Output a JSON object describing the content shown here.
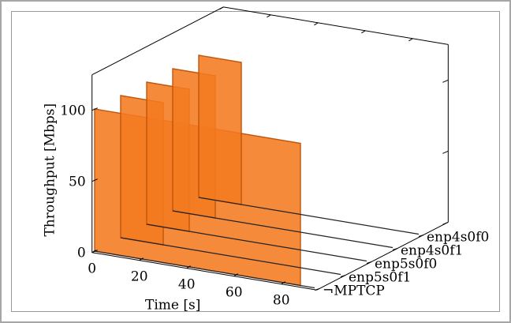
{
  "chart_data": {
    "type": "area",
    "projection": "3d",
    "xlabel": "Time [s]",
    "ylabel": "Throughput [Mbps]",
    "zlabel": "",
    "x_ticks": [
      "0",
      "20",
      "40",
      "60",
      "80"
    ],
    "y_ticks": [
      "0",
      "50",
      "100"
    ],
    "xlim": [
      0,
      95
    ],
    "ylim": [
      0,
      125
    ],
    "grid": false,
    "fill_color": "#f47a20",
    "edge_color": "#c0560c",
    "series": [
      {
        "name": "enp4s0f0",
        "x": [
          0,
          0,
          18,
          18
        ],
        "y": [
          0,
          100,
          100,
          0
        ]
      },
      {
        "name": "enp4s0f1",
        "x": [
          0,
          0,
          18,
          18
        ],
        "y": [
          0,
          100,
          100,
          0
        ]
      },
      {
        "name": "enp5s0f0",
        "x": [
          0,
          0,
          18,
          18
        ],
        "y": [
          0,
          100,
          100,
          0
        ]
      },
      {
        "name": "enp5s0f1",
        "x": [
          0,
          0,
          18,
          18
        ],
        "y": [
          0,
          100,
          100,
          0
        ]
      },
      {
        "name": "¬MPTCP",
        "x": [
          0,
          0,
          87,
          87
        ],
        "y": [
          0,
          100,
          100,
          0
        ]
      }
    ]
  }
}
